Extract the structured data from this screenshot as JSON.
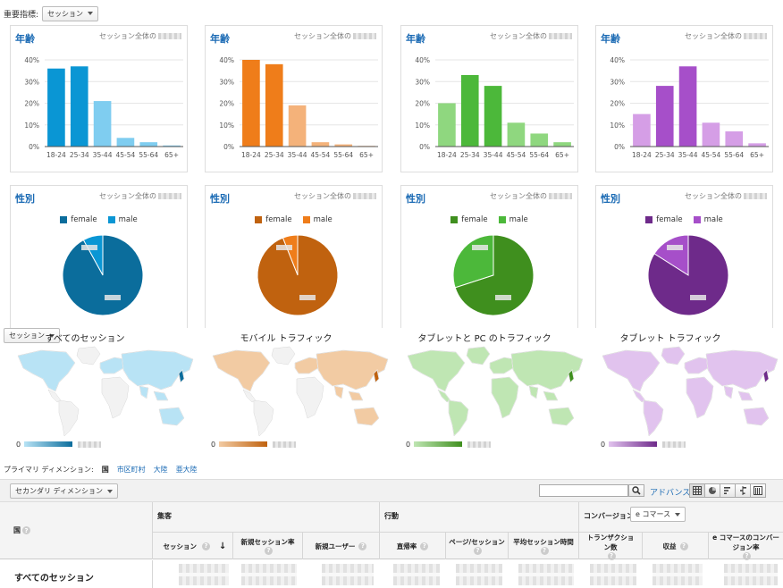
{
  "topbar": {
    "label": "重要指標:",
    "metric_select": "セッション"
  },
  "segments": [
    {
      "name": "all",
      "color": "#0a96d4",
      "light": "#7fcdf0",
      "dark": "#0b6d9c",
      "map_fill": "#b8e3f5",
      "map_title": "すべてのセッション",
      "age_values": [
        36,
        37,
        21,
        4,
        2,
        0.5
      ],
      "male_fraction": 0.08
    },
    {
      "name": "mobile",
      "color": "#ef7d1a",
      "light": "#f4b27a",
      "dark": "#c0620f",
      "map_fill": "#f2cba3",
      "map_title": "モバイル トラフィック",
      "age_values": [
        40,
        38,
        19,
        2,
        1,
        0.3
      ],
      "male_fraction": 0.06
    },
    {
      "name": "tablet_pc",
      "color": "#4cb83a",
      "light": "#8fd77f",
      "dark": "#3f8f1e",
      "map_fill": "#bfe6b3",
      "map_title": "タブレットと PC のトラフィック",
      "age_values": [
        20,
        33,
        28,
        11,
        6,
        2
      ],
      "male_fraction": 0.3
    },
    {
      "name": "tablet",
      "color": "#a64fc9",
      "light": "#d59ee6",
      "dark": "#6e2a8a",
      "map_fill": "#e1c3ee",
      "map_title": "タブレット トラフィック",
      "age_values": [
        15,
        28,
        37,
        11,
        7,
        1.5
      ],
      "male_fraction": 0.16
    }
  ],
  "age_card": {
    "title": "年齢",
    "subtitle": "セッション全体の"
  },
  "gender_card": {
    "title": "性別",
    "subtitle": "セッション全体の",
    "legend_female": "female",
    "legend_male": "male"
  },
  "chart_data": [
    {
      "type": "bar",
      "segment": "all",
      "categories": [
        "18-24",
        "25-34",
        "35-44",
        "45-54",
        "55-64",
        "65+"
      ],
      "values": [
        36,
        37,
        21,
        4,
        2,
        0.5
      ],
      "ylim": [
        0,
        40
      ],
      "yticks": [
        "0%",
        "10%",
        "20%",
        "30%",
        "40%"
      ],
      "title": "年齢"
    },
    {
      "type": "bar",
      "segment": "mobile",
      "categories": [
        "18-24",
        "25-34",
        "35-44",
        "45-54",
        "55-64",
        "65+"
      ],
      "values": [
        40,
        38,
        19,
        2,
        1,
        0.3
      ],
      "ylim": [
        0,
        40
      ],
      "yticks": [
        "0%",
        "10%",
        "20%",
        "30%",
        "40%"
      ],
      "title": "年齢"
    },
    {
      "type": "bar",
      "segment": "tablet_pc",
      "categories": [
        "18-24",
        "25-34",
        "35-44",
        "45-54",
        "55-64",
        "65+"
      ],
      "values": [
        20,
        33,
        28,
        11,
        6,
        2
      ],
      "ylim": [
        0,
        40
      ],
      "yticks": [
        "0%",
        "10%",
        "20%",
        "30%",
        "40%"
      ],
      "title": "年齢"
    },
    {
      "type": "bar",
      "segment": "tablet",
      "categories": [
        "18-24",
        "25-34",
        "35-44",
        "45-54",
        "55-64",
        "65+"
      ],
      "values": [
        15,
        28,
        37,
        11,
        7,
        1.5
      ],
      "ylim": [
        0,
        40
      ],
      "yticks": [
        "0%",
        "10%",
        "20%",
        "30%",
        "40%"
      ],
      "title": "年齢"
    },
    {
      "type": "pie",
      "segment": "all",
      "labels": [
        "female",
        "male"
      ],
      "values": [
        92,
        8
      ],
      "title": "性別"
    },
    {
      "type": "pie",
      "segment": "mobile",
      "labels": [
        "female",
        "male"
      ],
      "values": [
        94,
        6
      ],
      "title": "性別"
    },
    {
      "type": "pie",
      "segment": "tablet_pc",
      "labels": [
        "female",
        "male"
      ],
      "values": [
        70,
        30
      ],
      "title": "性別"
    },
    {
      "type": "pie",
      "segment": "tablet",
      "labels": [
        "female",
        "male"
      ],
      "values": [
        84,
        16
      ],
      "title": "性別"
    }
  ],
  "map_section": {
    "metric_select": "セッション",
    "scale_min": "0"
  },
  "primary_dimension": {
    "label": "プライマリ ディメンション:",
    "current": "国",
    "links": [
      "市区町村",
      "大陸",
      "亜大陸"
    ]
  },
  "table_toolbar": {
    "secondary_dimension": "セカンダリ ディメンション",
    "search_value": "",
    "advanced": "アドバンス"
  },
  "table": {
    "dimension_header": "国",
    "groups": {
      "acquisition": "集客",
      "behavior": "行動",
      "conversion": "コンバージョン",
      "conversion_select": "e コマース"
    },
    "columns": {
      "sessions": "セッション",
      "new_session_rate": "新規セッション率",
      "new_users": "新規ユーザー",
      "bounce_rate": "直帰率",
      "pages_per_session": "ページ/セッション",
      "avg_session_duration": "平均セッション時間",
      "transactions": "トランザクション数",
      "revenue": "収益",
      "ecommerce_conversion_rate": "e コマースのコンバージョン率"
    },
    "total_row_label": "すべてのセッション",
    "sort_arrow": "↓"
  }
}
